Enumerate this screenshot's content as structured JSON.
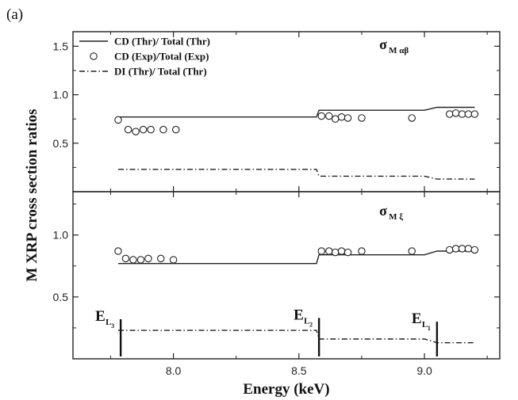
{
  "figure_label": "(a)",
  "chart_data": {
    "type": "line",
    "xlabel": "Energy (keV)",
    "ylabel": "M XRP cross section ratios",
    "xlim": [
      7.6,
      9.3
    ],
    "x_ticks": [
      "8.0",
      "8.5",
      "9.0"
    ],
    "x_tick_values": [
      8.0,
      8.5,
      9.0
    ],
    "legend_placement": "top-left",
    "legend": [
      {
        "label": "CD (Thr)/ Total (Thr)",
        "style": "solid-line"
      },
      {
        "label": "CD (Exp)/Total (Exp)",
        "style": "open-circle"
      },
      {
        "label": "DI (Thr)/ Total (Thr)",
        "style": "dash-dot-line"
      }
    ],
    "panels": [
      {
        "id": "top",
        "title_main": "σ",
        "title_sub": "M αβ",
        "ylim": [
          0.0,
          1.65
        ],
        "y_ticks": [
          "0.5",
          "1.0",
          "1.5"
        ],
        "y_tick_values": [
          0.5,
          1.0,
          1.5
        ],
        "series": [
          {
            "name": "CD (Thr)/ Total (Thr)",
            "style": "solid",
            "x": [
              7.78,
              8.57,
              8.58,
              9.0,
              9.05,
              9.2
            ],
            "y": [
              0.77,
              0.77,
              0.84,
              0.84,
              0.87,
              0.87
            ]
          },
          {
            "name": "CD (Exp)/Total (Exp)",
            "style": "circle",
            "x": [
              7.78,
              7.82,
              7.85,
              7.88,
              7.91,
              7.96,
              8.01,
              8.59,
              8.62,
              8.645,
              8.67,
              8.695,
              8.75,
              8.95,
              9.1,
              9.125,
              9.15,
              9.175,
              9.2
            ],
            "y": [
              0.74,
              0.64,
              0.62,
              0.64,
              0.64,
              0.64,
              0.64,
              0.78,
              0.78,
              0.75,
              0.77,
              0.76,
              0.76,
              0.76,
              0.8,
              0.81,
              0.8,
              0.8,
              0.8
            ]
          },
          {
            "name": "DI (Thr)/ Total (Thr)",
            "style": "dashdot",
            "x": [
              7.78,
              8.57,
              8.58,
              9.0,
              9.05,
              9.2
            ],
            "y": [
              0.23,
              0.23,
              0.16,
              0.16,
              0.13,
              0.13
            ]
          }
        ]
      },
      {
        "id": "bottom",
        "title_main": "σ",
        "title_sub": "M ξ",
        "ylim": [
          0.0,
          1.35
        ],
        "y_ticks": [
          "0.5",
          "1.0"
        ],
        "y_tick_values": [
          0.5,
          1.0
        ],
        "series": [
          {
            "name": "CD (Thr)/ Total (Thr)",
            "style": "solid",
            "x": [
              7.78,
              8.57,
              8.58,
              9.0,
              9.05,
              9.2
            ],
            "y": [
              0.77,
              0.77,
              0.84,
              0.84,
              0.87,
              0.87
            ]
          },
          {
            "name": "CD (Exp)/Total (Exp)",
            "style": "circle",
            "x": [
              7.78,
              7.81,
              7.84,
              7.87,
              7.9,
              7.95,
              8.0,
              8.59,
              8.62,
              8.645,
              8.67,
              8.695,
              8.75,
              8.95,
              9.1,
              9.125,
              9.15,
              9.175,
              9.2
            ],
            "y": [
              0.87,
              0.81,
              0.8,
              0.8,
              0.81,
              0.81,
              0.8,
              0.87,
              0.87,
              0.86,
              0.87,
              0.86,
              0.87,
              0.87,
              0.88,
              0.89,
              0.89,
              0.89,
              0.88
            ]
          },
          {
            "name": "DI (Thr)/ Total (Thr)",
            "style": "dashdot",
            "x": [
              7.78,
              8.57,
              8.58,
              9.0,
              9.05,
              9.2
            ],
            "y": [
              0.23,
              0.23,
              0.16,
              0.16,
              0.13,
              0.13
            ]
          }
        ],
        "edges": [
          {
            "main": "E",
            "sub": "L",
            "subsub": "3",
            "x": 7.79,
            "y_top": 0.32
          },
          {
            "main": "E",
            "sub": "L",
            "subsub": "2",
            "x": 8.58,
            "y_top": 0.33
          },
          {
            "main": "E",
            "sub": "L",
            "subsub": "1",
            "x": 9.05,
            "y_top": 0.3
          }
        ]
      }
    ]
  }
}
